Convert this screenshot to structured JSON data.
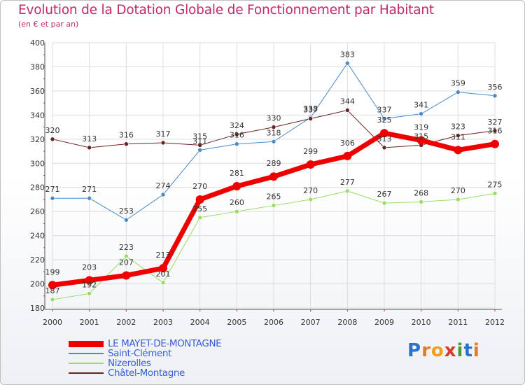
{
  "title": "Evolution de la Dotation Globale de Fonctionnement par Habitant",
  "subtitle": "(en € et par an)",
  "logo": {
    "text": "Proxiti",
    "letters": [
      "P",
      "r",
      "o",
      "x",
      "i",
      "t",
      "i"
    ],
    "colors": [
      "#2b73c9",
      "#e47a20",
      "#f0a020",
      "#d83a2a",
      "#4a9a3a",
      "#2b73c9",
      "#e47a20"
    ]
  },
  "chart_data": {
    "type": "line",
    "x": [
      "2000",
      "2001",
      "2002",
      "2003",
      "2004",
      "2005",
      "2006",
      "2007",
      "2008",
      "2009",
      "2010",
      "2011",
      "2012"
    ],
    "ylim": [
      180,
      400
    ],
    "yticks": [
      180,
      200,
      220,
      240,
      260,
      280,
      300,
      320,
      340,
      360,
      380,
      400
    ],
    "grid": true,
    "legend_position": "bottom-left",
    "series": [
      {
        "name": "Saint-Clément",
        "color": "#4a8ac6",
        "width": 1,
        "values": [
          271,
          271,
          253,
          274,
          311,
          316,
          318,
          338,
          383,
          337,
          341,
          359,
          356
        ]
      },
      {
        "name": "Nizerolles",
        "color": "#99dd66",
        "width": 1,
        "values": [
          187,
          192,
          223,
          201,
          255,
          260,
          265,
          270,
          277,
          267,
          268,
          270,
          275
        ]
      },
      {
        "name": "Châtel-Montagne",
        "color": "#6b2222",
        "width": 1,
        "values": [
          320,
          313,
          316,
          317,
          315,
          324,
          330,
          337,
          344,
          313,
          315,
          323,
          327
        ]
      },
      {
        "name": "LE MAYET-DE-MONTAGNE",
        "color": "#ee0000",
        "width": 7,
        "values": [
          199,
          203,
          207,
          213,
          270,
          281,
          289,
          299,
          306,
          325,
          319,
          311,
          316
        ]
      }
    ],
    "legend_order": [
      "LE MAYET-DE-MONTAGNE",
      "Saint-Clément",
      "Nizerolles",
      "Châtel-Montagne"
    ]
  }
}
